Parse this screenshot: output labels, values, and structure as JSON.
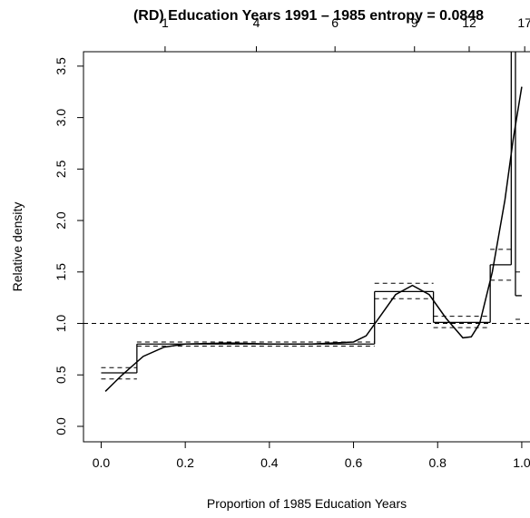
{
  "chart_data": {
    "type": "step",
    "title": "(RD) Education Years 1991 – 1985 entropy = 0.0848",
    "xlabel": "Proportion of 1985 Education Years",
    "ylabel": "Relative density",
    "xlim": [
      -0.042,
      1.08
    ],
    "ylim": [
      -0.15,
      3.64
    ],
    "xticks": [
      {
        "value": 0,
        "label": "0.0"
      },
      {
        "value": 0.2,
        "label": "0.2"
      },
      {
        "value": 0.4,
        "label": "0.4"
      },
      {
        "value": 0.6,
        "label": "0.6"
      },
      {
        "value": 0.8,
        "label": "0.8"
      },
      {
        "value": 1,
        "label": "1.0"
      }
    ],
    "yticks": [
      {
        "value": 0,
        "label": "0.0"
      },
      {
        "value": 0.5,
        "label": "0.5"
      },
      {
        "value": 1,
        "label": "1.0"
      },
      {
        "value": 1.5,
        "label": "1.5"
      },
      {
        "value": 2,
        "label": "2.0"
      },
      {
        "value": 2.5,
        "label": "2.5"
      },
      {
        "value": 3,
        "label": "3.0"
      },
      {
        "value": 3.5,
        "label": "3.5"
      }
    ],
    "top_ticks": [
      {
        "value": 0.152,
        "label": "1"
      },
      {
        "value": 0.369,
        "label": "4"
      },
      {
        "value": 0.556,
        "label": "6"
      },
      {
        "value": 0.745,
        "label": "9"
      },
      {
        "value": 0.875,
        "label": "12"
      },
      {
        "value": 1.007,
        "label": "17"
      }
    ],
    "bins": [
      0,
      0.085,
      0.65,
      0.79,
      0.925,
      0.975,
      0.985,
      1.0
    ],
    "density": [
      0.52,
      0.8,
      1.31,
      1.01,
      1.57,
      5,
      1.27
    ],
    "ci_lower": [
      0.46,
      0.78,
      1.24,
      0.96,
      1.42,
      null,
      1.04
    ],
    "ci_upper": [
      0.57,
      0.82,
      1.39,
      1.07,
      1.72,
      null,
      1.5
    ],
    "reference_line": 1,
    "curve": {
      "x": [
        0.01,
        0.05,
        0.1,
        0.15,
        0.2,
        0.3,
        0.4,
        0.5,
        0.6,
        0.63,
        0.66,
        0.7,
        0.74,
        0.78,
        0.82,
        0.86,
        0.88,
        0.9,
        0.93,
        0.96,
        0.98,
        1.0
      ],
      "values": [
        0.34,
        0.5,
        0.68,
        0.77,
        0.8,
        0.81,
        0.8,
        0.8,
        0.82,
        0.88,
        1.05,
        1.28,
        1.37,
        1.28,
        1.05,
        0.86,
        0.87,
        1.0,
        1.5,
        2.2,
        2.8,
        3.3
      ]
    }
  }
}
